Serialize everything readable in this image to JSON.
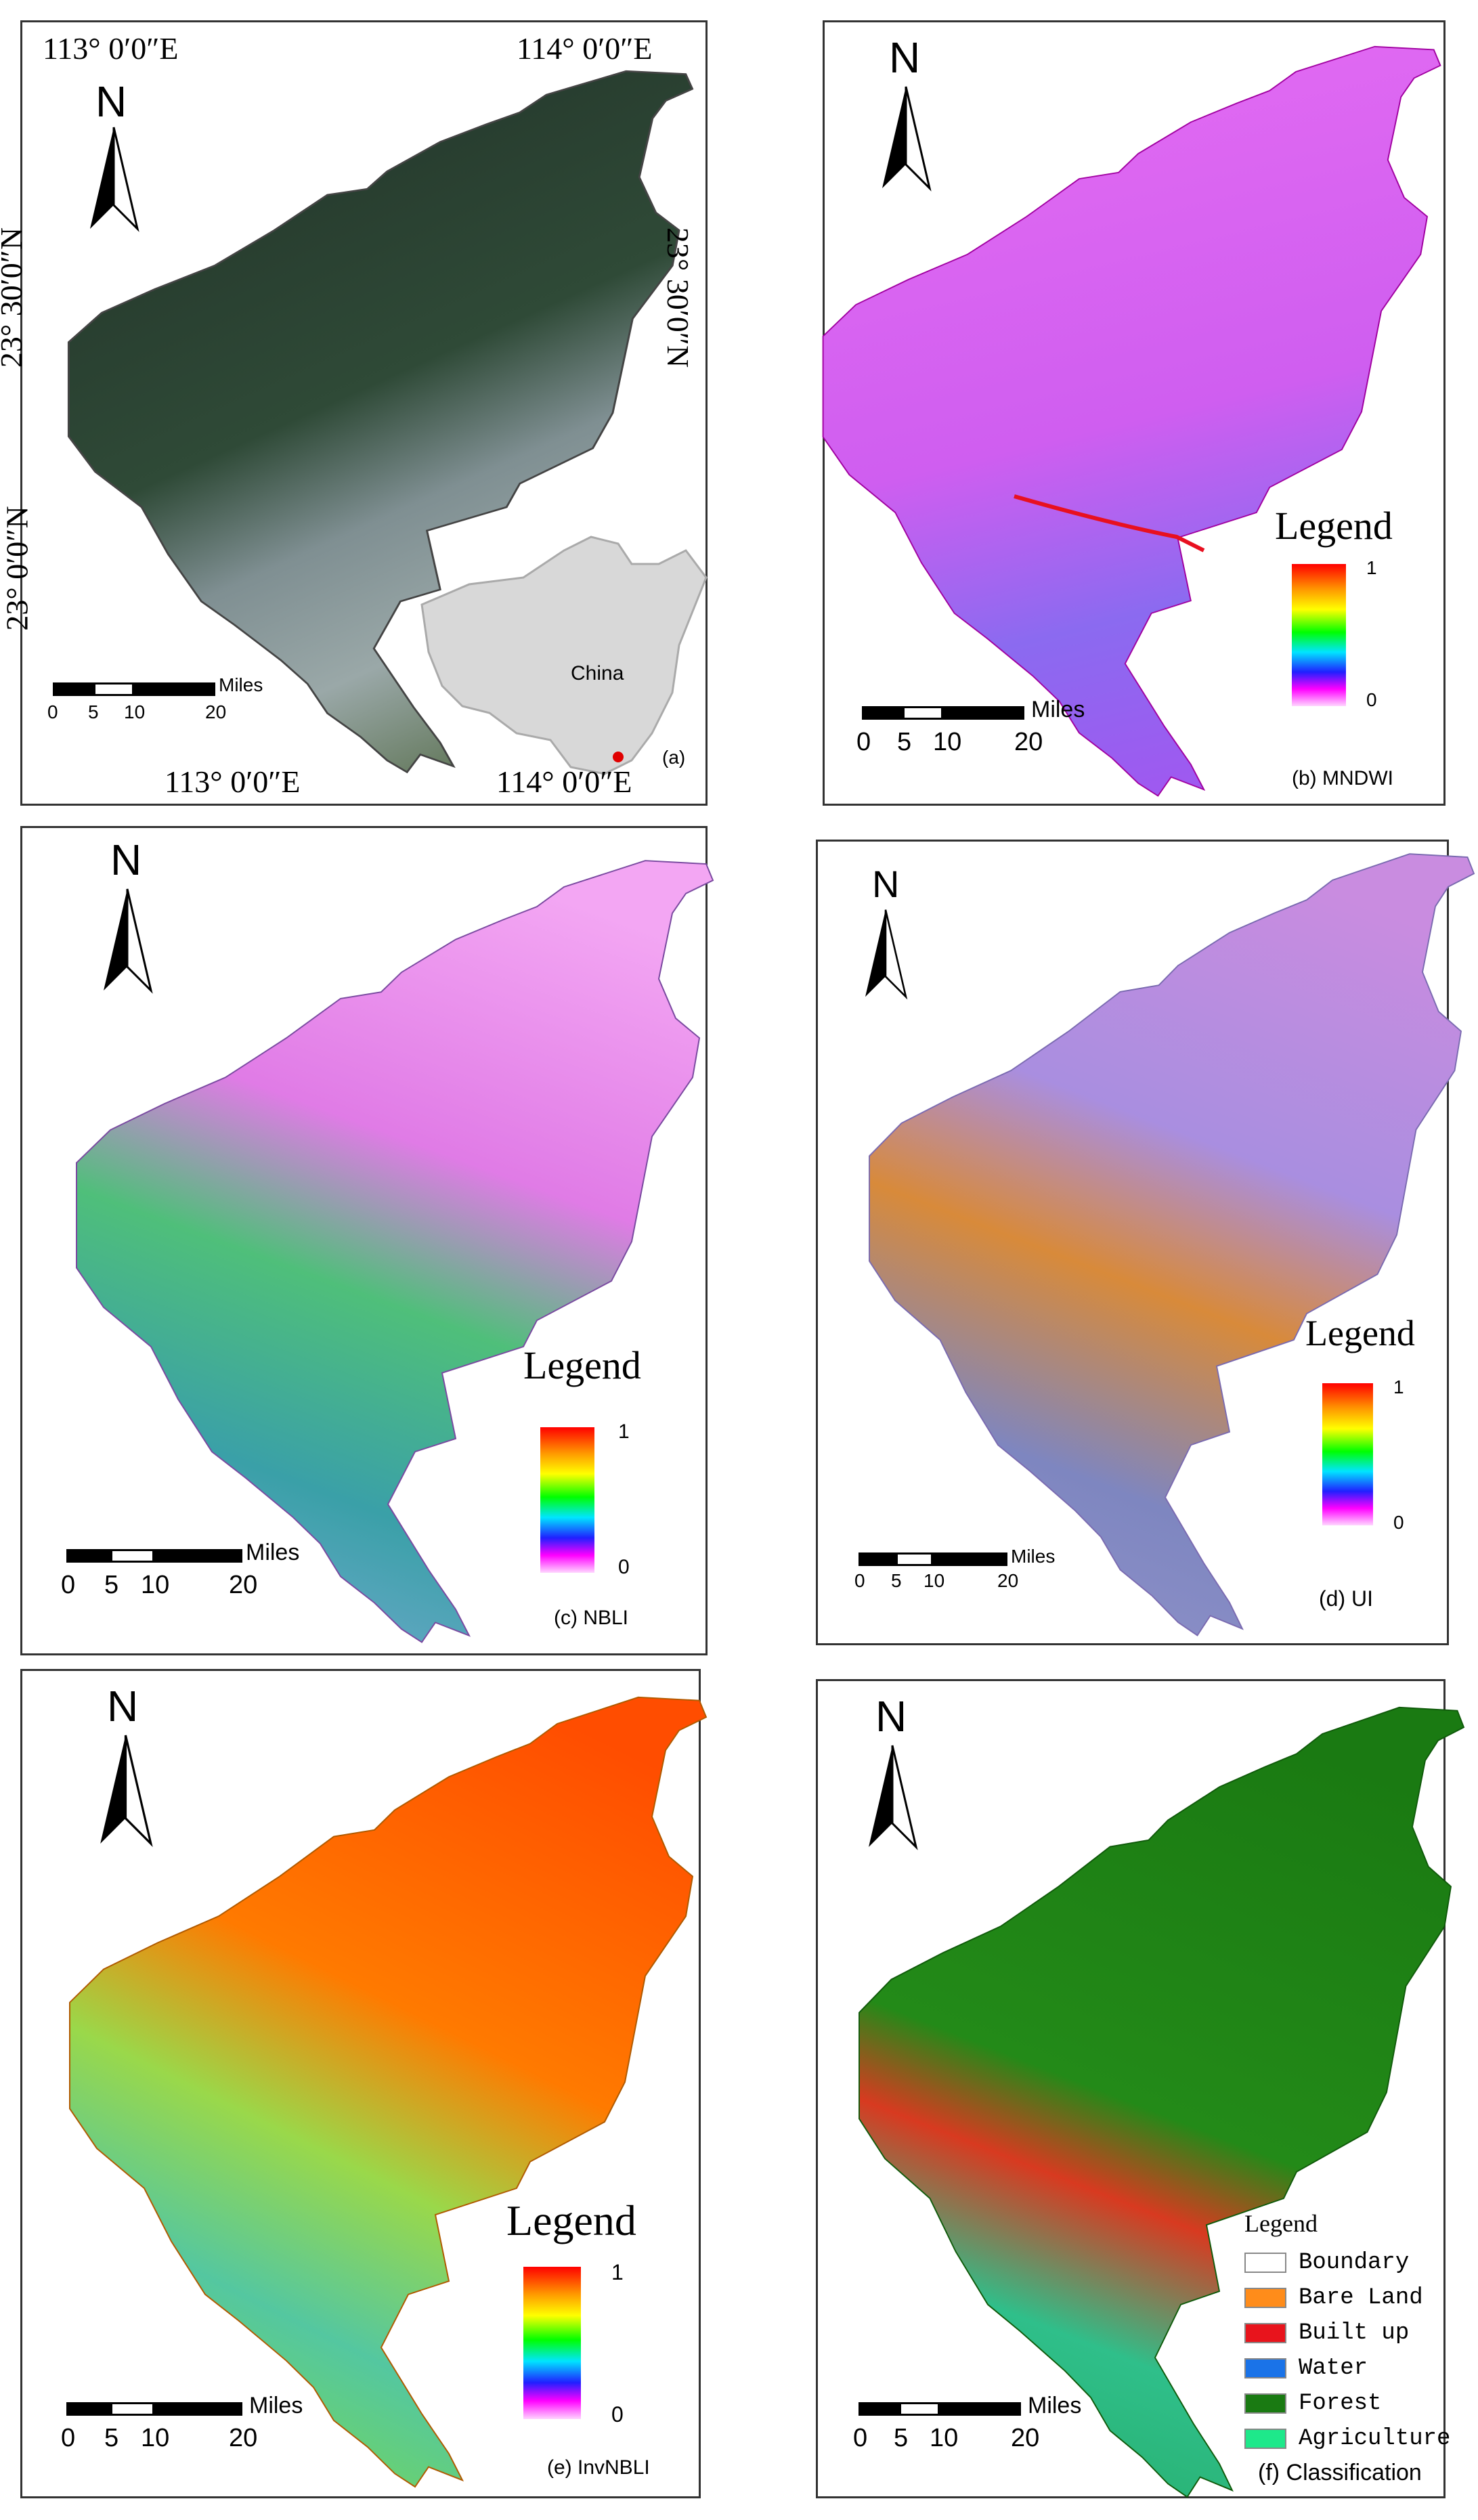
{
  "panels": {
    "a": {
      "caption": "(a)",
      "coords": {
        "top_left": "113° 0′0″E",
        "top_right": "114° 0′0″E",
        "bottom_left": "113° 0′0″E",
        "bottom_right": "114° 0′0″E",
        "left_upper": "23° 30′0″N",
        "left_lower": "23° 0′0″N",
        "right_upper": "23° 30′0″N"
      },
      "inset_label": "China",
      "north": "N",
      "scale": {
        "unit": "Miles",
        "ticks": [
          "0",
          "5",
          "10",
          "20"
        ]
      }
    },
    "b": {
      "caption": "(b) MNDWI",
      "north": "N",
      "legend_title": "Legend",
      "legend_max": "1",
      "legend_min": "0",
      "scale": {
        "unit": "Miles",
        "ticks": [
          "0",
          "5",
          "10",
          "20"
        ]
      }
    },
    "c": {
      "caption": "(c) NBLI",
      "north": "N",
      "legend_title": "Legend",
      "legend_max": "1",
      "legend_min": "0",
      "scale": {
        "unit": "Miles",
        "ticks": [
          "0",
          "5",
          "10",
          "20"
        ]
      }
    },
    "d": {
      "caption": "(d)  UI",
      "north": "N",
      "legend_title": "Legend",
      "legend_max": "1",
      "legend_min": "0",
      "scale": {
        "unit": "Miles",
        "ticks": [
          "0",
          "5",
          "10",
          "20"
        ]
      }
    },
    "e": {
      "caption": "(e) InvNBLI",
      "north": "N",
      "legend_title": "Legend",
      "legend_max": "1",
      "legend_min": "0",
      "scale": {
        "unit": "Miles",
        "ticks": [
          "0",
          "5",
          "10",
          "20"
        ]
      }
    },
    "f": {
      "caption": "(f) Classification",
      "north": "N",
      "legend_title": "Legend",
      "classes": [
        {
          "label": "Boundary",
          "color": "#ffffff"
        },
        {
          "label": "Bare Land",
          "color": "#ff8c1a"
        },
        {
          "label": "Built up",
          "color": "#e8141c"
        },
        {
          "label": "Water",
          "color": "#1a73e8"
        },
        {
          "label": "Forest",
          "color": "#1a7a12"
        },
        {
          "label": "Agriculture",
          "color": "#1ee88a"
        }
      ],
      "scale": {
        "unit": "Miles",
        "ticks": [
          "0",
          "5",
          "10",
          "20"
        ]
      }
    }
  },
  "colors": {
    "ramp": [
      "#ff0000",
      "#ff8c00",
      "#ffff00",
      "#00ff00",
      "#00ffff",
      "#0000ff",
      "#ff00ff",
      "#ffd0ff"
    ]
  }
}
